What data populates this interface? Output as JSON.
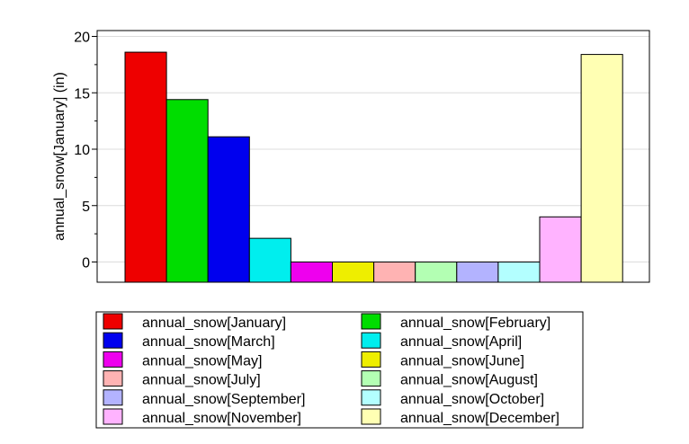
{
  "chart_data": {
    "type": "bar",
    "title": "",
    "xlabel": "",
    "ylabel": "annual_snow[January] (in)",
    "ylim": [
      -1.8,
      20.5
    ],
    "yticks": [
      0,
      5,
      10,
      15,
      20
    ],
    "grid": true,
    "legend_placement": "bottom",
    "series": [
      {
        "name": "annual_snow[January]",
        "value": 18.6,
        "color": "#ee0000"
      },
      {
        "name": "annual_snow[February]",
        "value": 14.4,
        "color": "#00dd00"
      },
      {
        "name": "annual_snow[March]",
        "value": 11.1,
        "color": "#0000ee"
      },
      {
        "name": "annual_snow[April]",
        "value": 2.1,
        "color": "#00eeee"
      },
      {
        "name": "annual_snow[May]",
        "value": 0,
        "color": "#ee00ee"
      },
      {
        "name": "annual_snow[June]",
        "value": 0,
        "color": "#eeee00"
      },
      {
        "name": "annual_snow[July]",
        "value": 0,
        "color": "#ffb3b3"
      },
      {
        "name": "annual_snow[August]",
        "value": 0,
        "color": "#b3ffb3"
      },
      {
        "name": "annual_snow[September]",
        "value": 0,
        "color": "#b3b3ff"
      },
      {
        "name": "annual_snow[October]",
        "value": 0,
        "color": "#b3ffff"
      },
      {
        "name": "annual_snow[November]",
        "value": 4.0,
        "color": "#ffb3ff"
      },
      {
        "name": "annual_snow[December]",
        "value": 18.4,
        "color": "#ffffb3"
      }
    ]
  }
}
